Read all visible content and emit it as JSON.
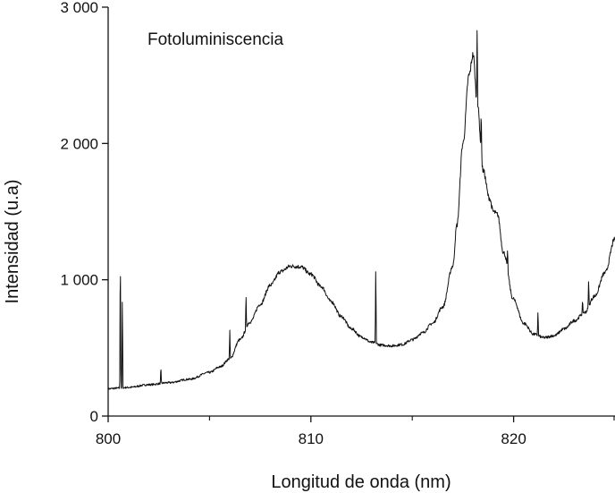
{
  "chart_data": {
    "type": "line",
    "title": "",
    "annotation": "Fotoluminiscencia",
    "xlabel": "Longitud de onda (nm)",
    "ylabel": "Intensidad (u.a)",
    "xlim": [
      800,
      825
    ],
    "ylim": [
      0,
      3000
    ],
    "x_ticks": [
      800,
      810,
      820
    ],
    "x_tick_labels": [
      "800",
      "810",
      "820"
    ],
    "x_minor_ticks": [
      805,
      815,
      825
    ],
    "y_ticks": [
      0,
      1000,
      2000,
      3000
    ],
    "y_tick_labels": [
      "0",
      "1 000",
      "2 000",
      "3 000"
    ],
    "grid": false,
    "series": [
      {
        "x": [
          800,
          800.5,
          801,
          802,
          803,
          804,
          805,
          805.5,
          806,
          806.5,
          807,
          807.5,
          808,
          808.5,
          809,
          809.5,
          810,
          810.5,
          811,
          811.5,
          812,
          812.5,
          813,
          813.5,
          814,
          814.5,
          815,
          815.5,
          816,
          816.5,
          817,
          817.2,
          817.5,
          817.8,
          818,
          818.2,
          818.5,
          818.8,
          819,
          819.2,
          819.5,
          820,
          820.5,
          821,
          821.5,
          822,
          822.5,
          823,
          823.5,
          824,
          824.5,
          825
        ],
        "y": [
          200,
          205,
          210,
          230,
          245,
          270,
          320,
          360,
          420,
          560,
          690,
          820,
          960,
          1060,
          1100,
          1095,
          1040,
          950,
          840,
          730,
          640,
          580,
          540,
          520,
          515,
          525,
          560,
          610,
          680,
          800,
          1100,
          1400,
          2000,
          2500,
          2650,
          2300,
          1800,
          1600,
          1500,
          1480,
          1200,
          850,
          680,
          600,
          575,
          590,
          640,
          700,
          760,
          880,
          1050,
          1300
        ]
      }
    ],
    "spikes": [
      {
        "x": 800.6,
        "y": 1280
      },
      {
        "x": 800.7,
        "y": 920
      },
      {
        "x": 802.6,
        "y": 370
      },
      {
        "x": 806.0,
        "y": 630
      },
      {
        "x": 806.8,
        "y": 900
      },
      {
        "x": 813.2,
        "y": 1130
      },
      {
        "x": 818.2,
        "y": 2900
      },
      {
        "x": 818.4,
        "y": 2260
      },
      {
        "x": 819.7,
        "y": 1230
      },
      {
        "x": 820.0,
        "y": 870
      },
      {
        "x": 821.2,
        "y": 780
      },
      {
        "x": 823.4,
        "y": 860
      },
      {
        "x": 823.7,
        "y": 1010
      }
    ]
  }
}
